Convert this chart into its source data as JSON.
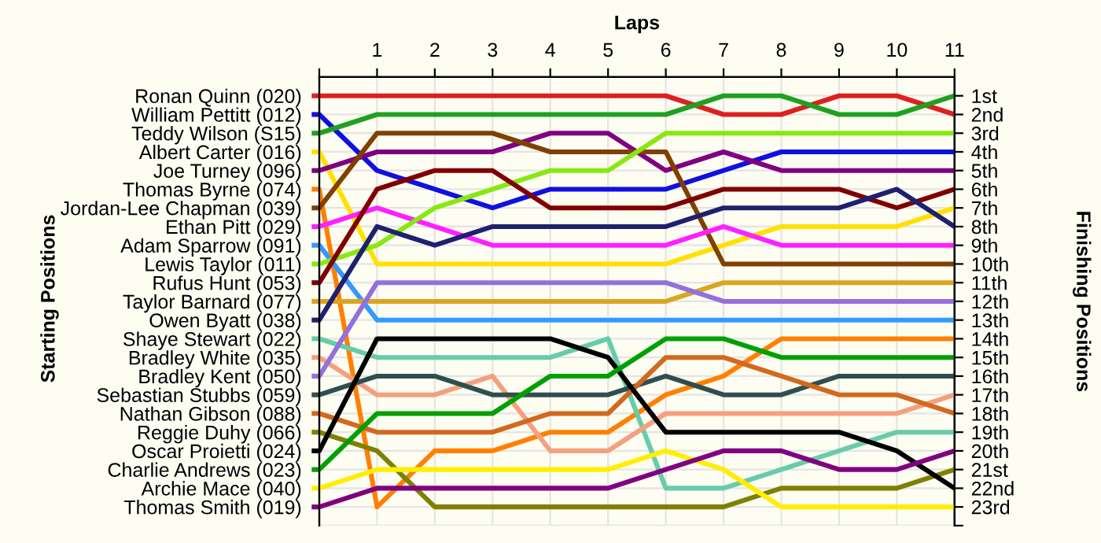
{
  "chart_data": {
    "type": "line",
    "xlabel": "Laps",
    "annotations": [
      "Starting Positions"
    ],
    "y2label": "Finishing Positions",
    "legend": "left",
    "x": [
      0,
      1,
      2,
      3,
      4,
      5,
      6,
      7,
      8,
      9,
      10,
      11
    ],
    "xlim": [
      0,
      11
    ],
    "xticks": [
      {
        "value": 0,
        "label": null
      },
      1,
      2,
      3,
      4,
      5,
      6,
      7,
      8,
      9,
      10,
      11
    ],
    "y2lim": [
      24,
      0
    ],
    "y2ticks": [
      {
        "value": 1,
        "label": "1st"
      },
      {
        "value": 2,
        "label": "2nd"
      },
      {
        "value": 3,
        "label": "3rd"
      },
      {
        "value": 4,
        "label": "4th"
      },
      {
        "value": 5,
        "label": "5th"
      },
      {
        "value": 6,
        "label": "6th"
      },
      {
        "value": 7,
        "label": "7th"
      },
      {
        "value": 8,
        "label": "8th"
      },
      {
        "value": 9,
        "label": "9th"
      },
      {
        "value": 10,
        "label": "10th"
      },
      {
        "value": 11,
        "label": "11th"
      },
      {
        "value": 12,
        "label": "12th"
      },
      {
        "value": 13,
        "label": "13th"
      },
      {
        "value": 14,
        "label": "14th"
      },
      {
        "value": 15,
        "label": "15th"
      },
      {
        "value": 16,
        "label": "16th"
      },
      {
        "value": 17,
        "label": "17th"
      },
      {
        "value": 18,
        "label": "18th"
      },
      {
        "value": 19,
        "label": "19th"
      },
      {
        "value": 20,
        "label": "20th"
      },
      {
        "value": 21,
        "label": "21st"
      },
      {
        "value": 22,
        "label": "22nd"
      },
      {
        "value": 23,
        "label": "23rd"
      },
      {
        "value": 24,
        "label": null
      }
    ],
    "grid": true,
    "series": [
      {
        "name": "Ronan Quinn (020)",
        "axis": "y2",
        "color": "#dd2020",
        "values": [
          1,
          1,
          1,
          1,
          1,
          1,
          1,
          2,
          2,
          1,
          1,
          2
        ]
      },
      {
        "name": "William Pettitt (012)",
        "axis": "y2",
        "color": "#1010e0",
        "values": [
          2,
          5,
          6,
          7,
          6,
          6,
          6,
          5,
          4,
          4,
          4,
          4
        ]
      },
      {
        "name": "Teddy Wilson (S15)",
        "axis": "y2",
        "color": "#20a020",
        "values": [
          3,
          2,
          2,
          2,
          2,
          2,
          2,
          1,
          1,
          2,
          2,
          1
        ]
      },
      {
        "name": "Albert Carter (016)",
        "axis": "y2",
        "color": "#ffe000",
        "values": [
          4,
          10,
          10,
          10,
          10,
          10,
          10,
          9,
          8,
          8,
          8,
          7
        ]
      },
      {
        "name": "Joe Turney (096)",
        "axis": "y2",
        "color": "#800080",
        "values": [
          5,
          4,
          4,
          4,
          3,
          3,
          5,
          4,
          5,
          5,
          5,
          5
        ]
      },
      {
        "name": "Thomas Byrne (074)",
        "axis": "y2",
        "color": "#ff8000",
        "values": [
          6,
          23,
          20,
          20,
          19,
          19,
          17,
          16,
          14,
          14,
          14,
          14
        ]
      },
      {
        "name": "Jordan-Lee Chapman (039)",
        "axis": "y2",
        "color": "#804000",
        "values": [
          7,
          3,
          3,
          3,
          4,
          4,
          4,
          10,
          10,
          10,
          10,
          10
        ]
      },
      {
        "name": "Ethan Pitt (029)",
        "axis": "y2",
        "color": "#ff20ff",
        "values": [
          8,
          7,
          8,
          9,
          9,
          9,
          9,
          8,
          9,
          9,
          9,
          9
        ]
      },
      {
        "name": "Adam Sparrow (091)",
        "axis": "y2",
        "color": "#3399ff",
        "values": [
          9,
          13,
          13,
          13,
          13,
          13,
          13,
          13,
          13,
          13,
          13,
          13
        ]
      },
      {
        "name": "Lewis Taylor (011)",
        "axis": "y2",
        "color": "#88e810",
        "values": [
          10,
          9,
          7,
          6,
          5,
          5,
          3,
          3,
          3,
          3,
          3,
          3
        ]
      },
      {
        "name": "Rufus Hunt (053)",
        "axis": "y2",
        "color": "#800000",
        "values": [
          11,
          6,
          5,
          5,
          7,
          7,
          7,
          6,
          6,
          6,
          7,
          6
        ]
      },
      {
        "name": "Taylor Barnard (077)",
        "axis": "y2",
        "color": "#daa520",
        "values": [
          12,
          12,
          12,
          12,
          12,
          12,
          12,
          11,
          11,
          11,
          11,
          11
        ]
      },
      {
        "name": "Owen Byatt (038)",
        "axis": "y2",
        "color": "#202070",
        "values": [
          13,
          8,
          9,
          8,
          8,
          8,
          8,
          7,
          7,
          7,
          6,
          8
        ]
      },
      {
        "name": "Shaye Stewart (022)",
        "axis": "y2",
        "color": "#66ccaa",
        "values": [
          14,
          15,
          15,
          15,
          15,
          14,
          22,
          22,
          21,
          20,
          19,
          19
        ]
      },
      {
        "name": "Bradley White (035)",
        "axis": "y2",
        "color": "#f4a080",
        "values": [
          15,
          17,
          17,
          16,
          20,
          20,
          18,
          18,
          18,
          18,
          18,
          17
        ]
      },
      {
        "name": "Bradley Kent (050)",
        "axis": "y2",
        "color": "#9370db",
        "values": [
          16,
          11,
          11,
          11,
          11,
          11,
          11,
          12,
          12,
          12,
          12,
          12
        ]
      },
      {
        "name": "Sebastian Stubbs (059)",
        "axis": "y2",
        "color": "#2f4f4f",
        "values": [
          17,
          16,
          16,
          17,
          17,
          17,
          16,
          17,
          17,
          16,
          16,
          16
        ]
      },
      {
        "name": "Nathan Gibson (088)",
        "axis": "y2",
        "color": "#d2691e",
        "values": [
          18,
          19,
          19,
          19,
          18,
          18,
          15,
          15,
          16,
          17,
          17,
          18
        ]
      },
      {
        "name": "Reggie Duhy (066)",
        "axis": "y2",
        "color": "#808000",
        "values": [
          19,
          20,
          23,
          23,
          23,
          23,
          23,
          23,
          22,
          22,
          22,
          21
        ]
      },
      {
        "name": "Oscar Proietti (024)",
        "axis": "y2",
        "color": "#000000",
        "values": [
          20,
          14,
          14,
          14,
          14,
          15,
          19,
          19,
          19,
          19,
          20,
          22
        ]
      },
      {
        "name": "Charlie Andrews (023)",
        "axis": "y2",
        "color": "#00a000",
        "values": [
          21,
          18,
          18,
          18,
          16,
          16,
          14,
          14,
          15,
          15,
          15,
          15
        ]
      },
      {
        "name": "Archie Mace (040)",
        "axis": "y2",
        "color": "#ffee00",
        "values": [
          22,
          21,
          21,
          21,
          21,
          21,
          20,
          21,
          23,
          23,
          23,
          23
        ]
      },
      {
        "name": "Thomas Smith (019)",
        "axis": "y2",
        "color": "#800080",
        "values": [
          23,
          22,
          22,
          22,
          22,
          22,
          21,
          20,
          20,
          21,
          21,
          20
        ]
      }
    ]
  }
}
